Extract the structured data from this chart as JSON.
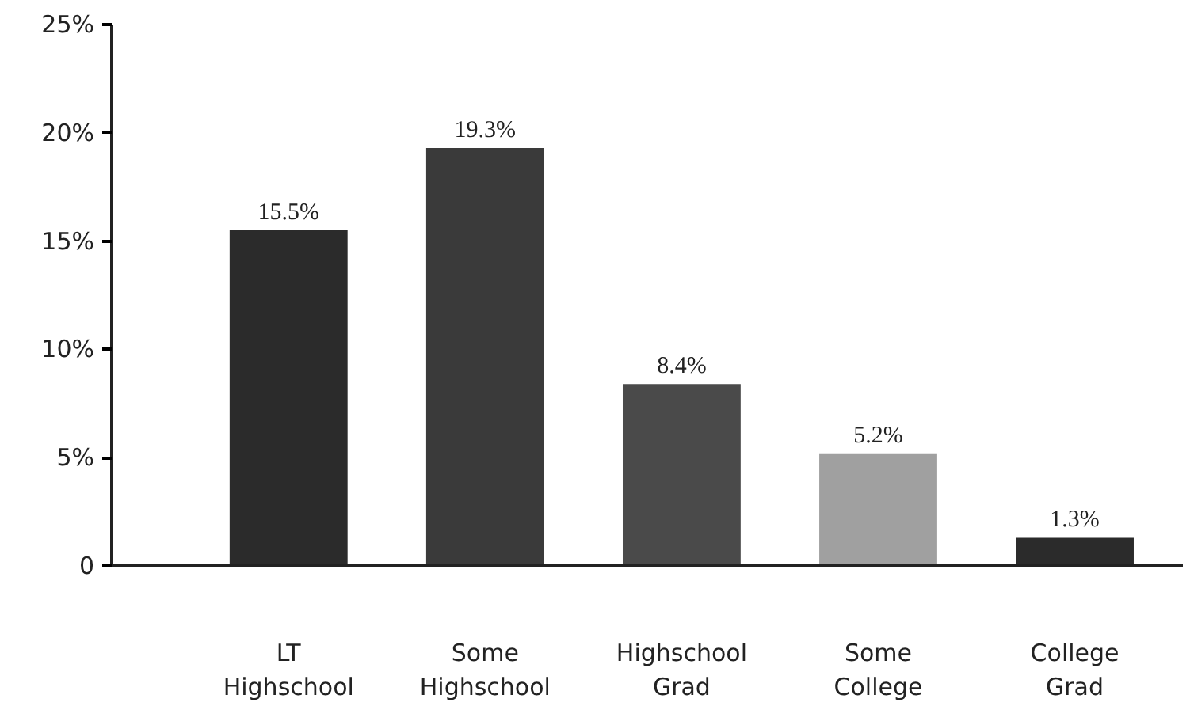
{
  "chart_data": {
    "type": "bar",
    "categories": [
      "LT\nHighschool",
      "Some\nHighschool",
      "Highschool\nGrad",
      "Some\nCollege",
      "College\nGrad"
    ],
    "values": [
      15.5,
      19.3,
      8.4,
      5.2,
      1.3
    ],
    "colors": [
      "#2b2b2b",
      "#3a3a3a",
      "#4a4a4a",
      "#a0a0a0",
      "#2b2b2b"
    ],
    "value_labels": [
      "15.5%",
      "19.3%",
      "8.4%",
      "5.2%",
      "1.3%"
    ],
    "ylim": [
      0,
      25
    ],
    "yticks": [
      {
        "value": 0,
        "label": "0"
      },
      {
        "value": 5,
        "label": "5%"
      },
      {
        "value": 10,
        "label": "10%"
      },
      {
        "value": 15,
        "label": "15%"
      },
      {
        "value": 20,
        "label": "20%"
      },
      {
        "value": 25,
        "label": "25%"
      }
    ],
    "grid": false
  }
}
